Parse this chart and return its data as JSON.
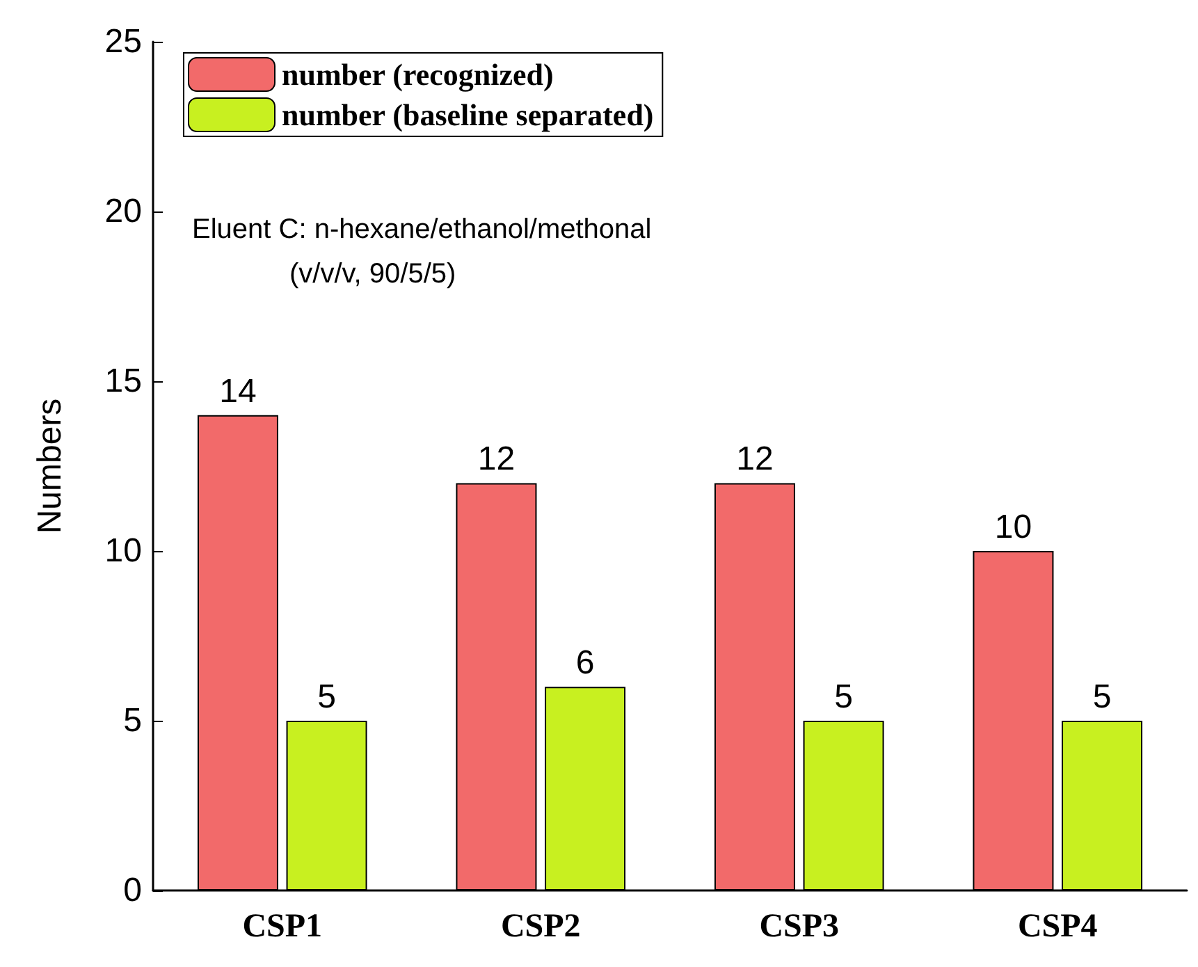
{
  "chart_data": {
    "type": "bar",
    "ylabel": "Numbers",
    "categories": [
      "CSP1",
      "CSP2",
      "CSP3",
      "CSP4"
    ],
    "series": [
      {
        "name": "number (recognized)",
        "color": "#f26a6a",
        "values": [
          14,
          12,
          12,
          10
        ]
      },
      {
        "name": "number (baseline separated)",
        "color": "#c8f020",
        "values": [
          5,
          6,
          5,
          5
        ]
      }
    ],
    "ylim": [
      0,
      25
    ],
    "yticks": [
      0,
      5,
      10,
      15,
      20,
      25
    ],
    "grid": false,
    "legend": "top left",
    "data_labels": true,
    "annotations": [
      "Eluent C: n-hexane/ethanol/methonal",
      "(v/v/v, 90/5/5)"
    ]
  }
}
